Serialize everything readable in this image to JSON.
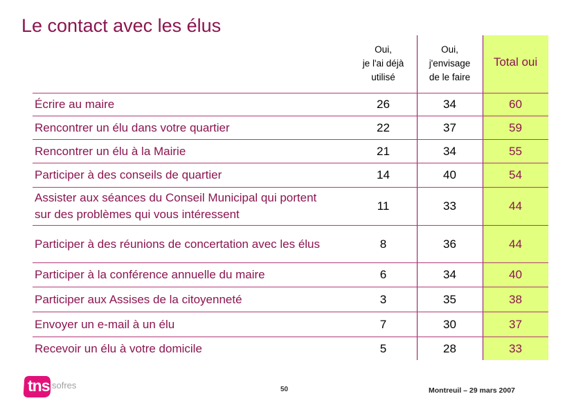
{
  "title": "Le contact avec les élus",
  "columns": {
    "col1": [
      "Oui,",
      "je l'ai déjà",
      "utilisé"
    ],
    "col2": [
      "Oui,",
      "j'envisage",
      "de le faire"
    ],
    "total": "Total oui"
  },
  "rows": [
    {
      "label": "Écrire au maire",
      "v1": "26",
      "v2": "34",
      "total": "60"
    },
    {
      "label": "Rencontrer un élu dans votre quartier",
      "v1": "22",
      "v2": "37",
      "total": "59"
    },
    {
      "label": "Rencontrer un élu à la Mairie",
      "v1": "21",
      "v2": "34",
      "total": "55"
    },
    {
      "label": "Participer à des conseils de quartier",
      "v1": "14",
      "v2": "40",
      "total": "54"
    },
    {
      "label": "Assister aux séances du Conseil Municipal qui portent sur des problèmes qui vous intéressent",
      "v1": "11",
      "v2": "33",
      "total": "44"
    },
    {
      "label": "Participer à des réunions de concertation avec les élus",
      "v1": "8",
      "v2": "36",
      "total": "44"
    },
    {
      "label": "Participer à la conférence annuelle du maire",
      "v1": "6",
      "v2": "34",
      "total": "40"
    },
    {
      "label": "Participer aux Assises de la citoyenneté",
      "v1": "3",
      "v2": "35",
      "total": "38"
    },
    {
      "label": "Envoyer un e-mail à un élu",
      "v1": "7",
      "v2": "30",
      "total": "37"
    },
    {
      "label": "Recevoir un élu à votre domicile",
      "v1": "5",
      "v2": "28",
      "total": "33"
    }
  ],
  "footer": {
    "logo_tns": "tns",
    "logo_sofres": "sofres",
    "page_number": "50",
    "location_date": "Montreuil – 29 mars 2007"
  },
  "colors": {
    "accent": "#8a1550",
    "logo_pink": "#e2117a",
    "total_bg": "#e2ff7f"
  }
}
